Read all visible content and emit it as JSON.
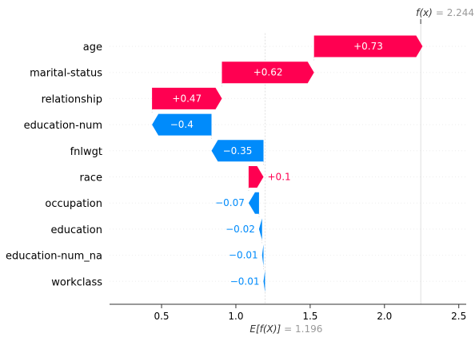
{
  "chart_data": {
    "type": "waterfall",
    "base_value": 1.196,
    "output_value": 2.244,
    "base_label_expr": "E[f(X)]",
    "base_label_eq": "= 1.196",
    "fx_label_expr": "f(x)",
    "fx_label_eq": "= 2.244",
    "xlim": [
      0.15,
      2.55
    ],
    "xticks": [
      0.5,
      1.0,
      1.5,
      2.0,
      2.5
    ],
    "xtick_labels": [
      "0.5",
      "1.0",
      "1.5",
      "2.0",
      "2.5"
    ],
    "features": [
      {
        "name": "age",
        "value": 0.73,
        "label": "+0.73"
      },
      {
        "name": "marital-status",
        "value": 0.62,
        "label": "+0.62"
      },
      {
        "name": "relationship",
        "value": 0.47,
        "label": "+0.47"
      },
      {
        "name": "education-num",
        "value": -0.4,
        "label": "−0.4"
      },
      {
        "name": "fnlwgt",
        "value": -0.35,
        "label": "−0.35"
      },
      {
        "name": "race",
        "value": 0.1,
        "label": "+0.1"
      },
      {
        "name": "occupation",
        "value": -0.07,
        "label": "−0.07"
      },
      {
        "name": "education",
        "value": -0.02,
        "label": "−0.02"
      },
      {
        "name": "education-num_na",
        "value": -0.01,
        "label": "−0.01"
      },
      {
        "name": "workclass",
        "value": -0.01,
        "label": "−0.01"
      }
    ],
    "colors": {
      "positive": "#ff0051",
      "negative": "#008bfb",
      "axis": "#333333",
      "muted": "#999999",
      "grid": "#cccccc"
    }
  }
}
